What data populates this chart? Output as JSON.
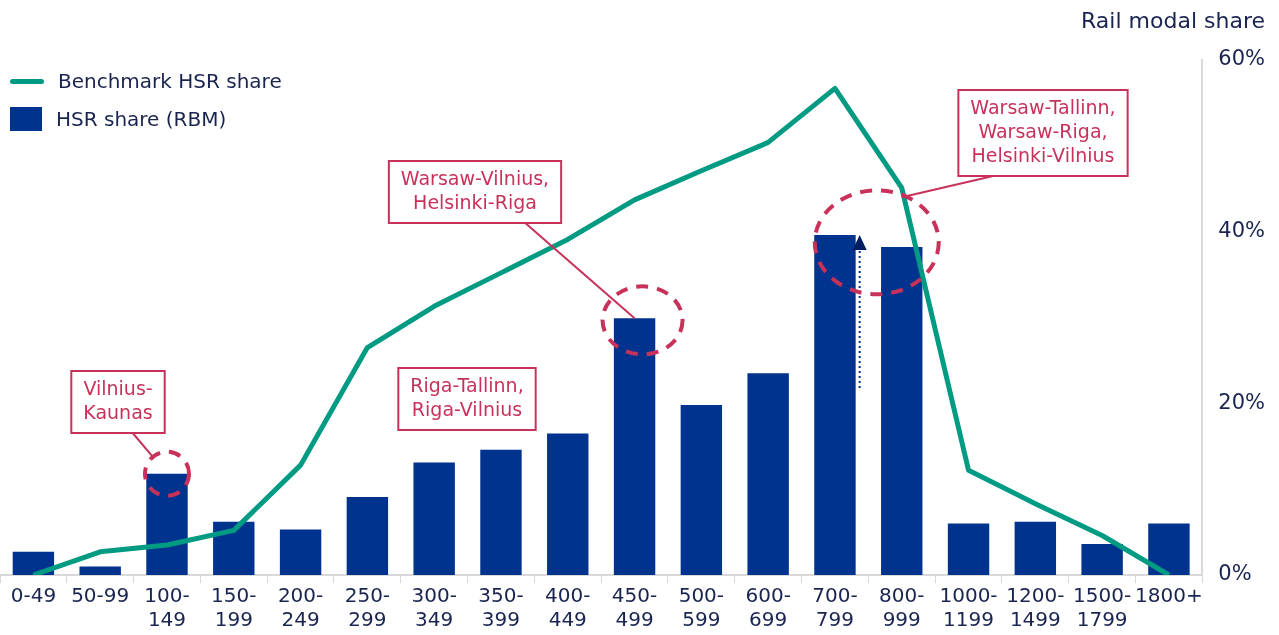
{
  "chart_data": {
    "type": "bar",
    "ylabel": "Rail modal share",
    "categories": [
      "0-49",
      "50-99",
      "100-149",
      "150-199",
      "200-249",
      "250-299",
      "300-349",
      "350-399",
      "400-449",
      "450-499",
      "500-599",
      "600-699",
      "700-799",
      "800-999",
      "1000-1199",
      "1200-1499",
      "1500-1799",
      "1800+"
    ],
    "series": [
      {
        "name": "Benchmark HSR share",
        "type": "line",
        "color": "#009b82",
        "values": [
          0,
          2.7,
          3.5,
          5.2,
          12.8,
          26.5,
          31.3,
          35.2,
          39.1,
          43.7,
          47.1,
          50.4,
          56.7,
          45.1,
          12.2,
          8.3,
          4.6,
          0
        ]
      },
      {
        "name": "HSR share (RBM)",
        "color": "#00338d",
        "values": [
          2.7,
          1.0,
          11.8,
          6.2,
          5.3,
          9.1,
          13.1,
          14.6,
          16.5,
          29.9,
          19.8,
          23.5,
          39.6,
          38.2,
          6.0,
          6.2,
          3.6,
          6.0
        ]
      }
    ],
    "ylim": [
      0,
      60
    ],
    "yticks": [
      {
        "value": 0,
        "label": "0%"
      },
      {
        "value": 20,
        "label": "20%"
      },
      {
        "value": 40,
        "label": "40%"
      },
      {
        "value": 60,
        "label": "60%"
      }
    ],
    "grid": false,
    "legend": "top left",
    "marker": "none",
    "line_style": "solid",
    "annotations": [
      {
        "text": "Vilnius-Kaunas",
        "x": "100-149",
        "y": 11.8
      },
      "Riga-Tallinn, Riga-Vilnius",
      {
        "text": "Warsaw-Vilnius, Helsinki-Riga",
        "x": "450-499",
        "y": 29.9
      },
      {
        "text": "Warsaw-Tallinn, Warsaw-Riga, Helsinki-Vilnius",
        "x": "800-999",
        "y": 44
      }
    ]
  }
}
